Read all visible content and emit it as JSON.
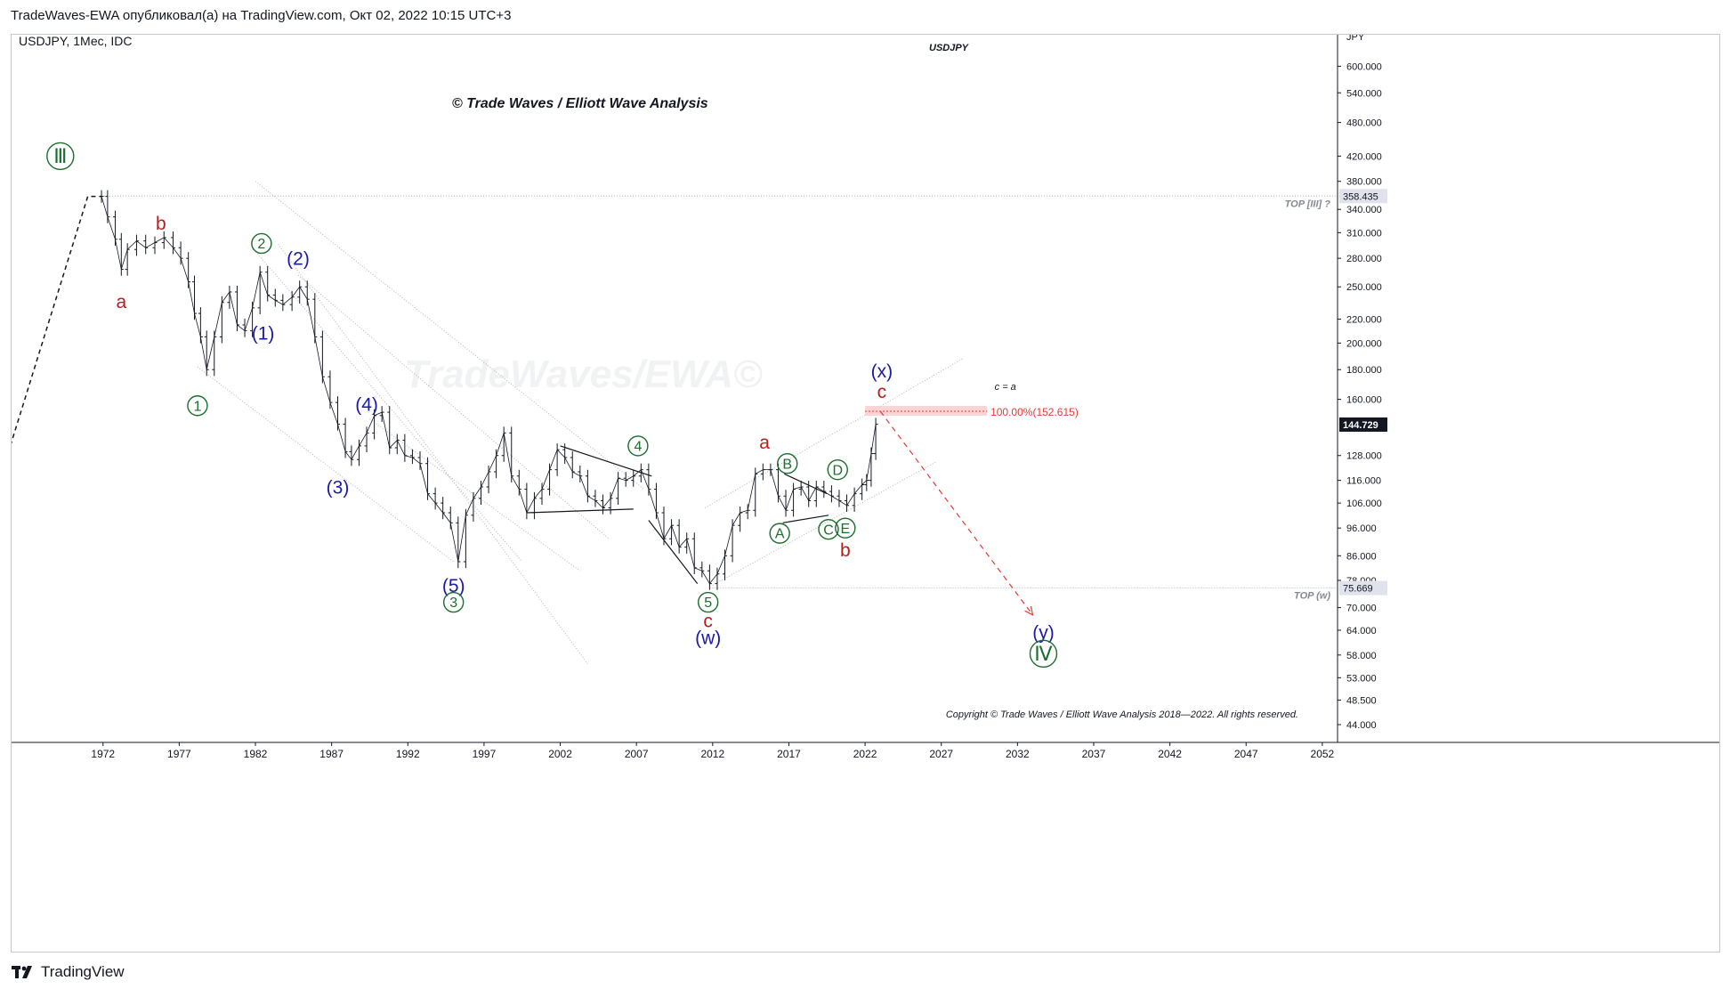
{
  "header": {
    "publisher_line": "TradeWaves-EWA опубликовал(а) на TradingView.com, Окт 02, 2022 10:15 UTC+3"
  },
  "symbol_line": "USDJPY, 1Мес, IDC",
  "symbol_tag": "USDJPY",
  "title": "© Trade Waves / Elliott Wave Analysis",
  "watermark": "TradeWaves/EWA©",
  "copyright": "Copyright © Trade Waves / Elliott Wave Analysis 2018—2022. All rights reserved.",
  "footer": {
    "brand": "TradingView"
  },
  "colors": {
    "green": "#1b6e2e",
    "blue": "#1a1aa8",
    "red": "#b71c1c",
    "bars": "#131722",
    "projection": "#e53935",
    "target_box": "#f8c7c7",
    "price_badge": "#131722",
    "level_badge": "#e0e3eb"
  },
  "chart_data": {
    "type": "ohlc",
    "title": "© Trade Waves / Elliott Wave Analysis",
    "axis_unit": "JPY",
    "y_scale": "log",
    "x_ticks": [
      "1972",
      "1977",
      "1982",
      "1987",
      "1992",
      "1997",
      "2002",
      "2007",
      "2012",
      "2017",
      "2022",
      "2027",
      "2032",
      "2037",
      "2042",
      "2047",
      "2052"
    ],
    "y_ticks": [
      "600.000",
      "540.000",
      "480.000",
      "420.000",
      "380.000",
      "340.000",
      "310.000",
      "280.000",
      "250.000",
      "220.000",
      "200.000",
      "180.000",
      "160.000",
      "128.000",
      "116.000",
      "106.000",
      "96.000",
      "86.000",
      "78.000",
      "70.000",
      "64.000",
      "58.000",
      "53.000",
      "48.500",
      "44.000"
    ],
    "ylim": [
      41,
      680
    ],
    "xlim": [
      1966,
      2053
    ],
    "price_series": [
      [
        1971.9,
        358
      ],
      [
        1972.3,
        330
      ],
      [
        1972.8,
        302
      ],
      [
        1973.2,
        268
      ],
      [
        1973.6,
        290
      ],
      [
        1974.2,
        300
      ],
      [
        1974.8,
        292
      ],
      [
        1975.4,
        298
      ],
      [
        1976.0,
        304
      ],
      [
        1976.6,
        292
      ],
      [
        1977.1,
        280
      ],
      [
        1977.6,
        255
      ],
      [
        1978.0,
        225
      ],
      [
        1978.4,
        205
      ],
      [
        1978.8,
        180
      ],
      [
        1979.3,
        205
      ],
      [
        1979.8,
        235
      ],
      [
        1980.3,
        245
      ],
      [
        1980.8,
        215
      ],
      [
        1981.3,
        210
      ],
      [
        1981.8,
        230
      ],
      [
        1982.3,
        265
      ],
      [
        1982.8,
        242
      ],
      [
        1983.3,
        237
      ],
      [
        1983.8,
        233
      ],
      [
        1984.4,
        240
      ],
      [
        1984.9,
        250
      ],
      [
        1985.4,
        238
      ],
      [
        1985.9,
        205
      ],
      [
        1986.4,
        175
      ],
      [
        1986.9,
        158
      ],
      [
        1987.4,
        145
      ],
      [
        1987.9,
        130
      ],
      [
        1988.3,
        126
      ],
      [
        1988.8,
        133
      ],
      [
        1989.3,
        140
      ],
      [
        1989.8,
        150
      ],
      [
        1990.3,
        152
      ],
      [
        1990.8,
        132
      ],
      [
        1991.3,
        136
      ],
      [
        1991.8,
        128
      ],
      [
        1992.3,
        127
      ],
      [
        1992.8,
        124
      ],
      [
        1993.3,
        110
      ],
      [
        1993.8,
        106
      ],
      [
        1994.3,
        102
      ],
      [
        1994.8,
        98
      ],
      [
        1995.3,
        84
      ],
      [
        1995.8,
        101
      ],
      [
        1996.3,
        108
      ],
      [
        1996.8,
        113
      ],
      [
        1997.3,
        120
      ],
      [
        1997.8,
        128
      ],
      [
        1998.3,
        140
      ],
      [
        1998.8,
        118
      ],
      [
        1999.3,
        112
      ],
      [
        1999.8,
        102
      ],
      [
        2000.3,
        108
      ],
      [
        2000.8,
        112
      ],
      [
        2001.3,
        121
      ],
      [
        2001.8,
        131
      ],
      [
        2002.3,
        127
      ],
      [
        2002.8,
        120
      ],
      [
        2003.3,
        118
      ],
      [
        2003.8,
        109
      ],
      [
        2004.3,
        107
      ],
      [
        2004.8,
        104
      ],
      [
        2005.3,
        108
      ],
      [
        2005.8,
        117
      ],
      [
        2006.3,
        116
      ],
      [
        2006.8,
        118
      ],
      [
        2007.3,
        121
      ],
      [
        2007.8,
        112
      ],
      [
        2008.3,
        102
      ],
      [
        2008.8,
        92
      ],
      [
        2009.3,
        97
      ],
      [
        2009.8,
        89
      ],
      [
        2010.3,
        92
      ],
      [
        2010.8,
        82
      ],
      [
        2011.3,
        81
      ],
      [
        2011.8,
        77
      ],
      [
        2012.3,
        80
      ],
      [
        2012.8,
        86
      ],
      [
        2013.3,
        97
      ],
      [
        2013.8,
        102
      ],
      [
        2014.3,
        103
      ],
      [
        2014.8,
        119
      ],
      [
        2015.3,
        121
      ],
      [
        2015.8,
        121
      ],
      [
        2016.3,
        109
      ],
      [
        2016.8,
        103
      ],
      [
        2017.3,
        112
      ],
      [
        2017.8,
        113
      ],
      [
        2018.3,
        107
      ],
      [
        2018.8,
        113
      ],
      [
        2019.3,
        111
      ],
      [
        2019.8,
        109
      ],
      [
        2020.3,
        107
      ],
      [
        2020.8,
        105
      ],
      [
        2021.3,
        110
      ],
      [
        2021.8,
        114
      ],
      [
        2022.1,
        116
      ],
      [
        2022.4,
        129
      ],
      [
        2022.7,
        145
      ]
    ],
    "reference_lines": [
      {
        "label": "TOP [III] ?",
        "value": 358.435
      },
      {
        "label": "TOP (w)",
        "value": 75.669
      }
    ],
    "price_badges": [
      {
        "value": "358.435",
        "y": 358.435,
        "style": "level"
      },
      {
        "value": "144.729",
        "y": 144.729,
        "style": "current"
      },
      {
        "value": "75.669",
        "y": 75.669,
        "style": "level"
      }
    ],
    "target_zone": {
      "label": "100.00%(152.615)",
      "value": 152.615,
      "x_start": 2022.0,
      "x_end": 2030.0,
      "note": "c = a"
    },
    "projection": {
      "from": [
        2023.0,
        152.6
      ],
      "to": [
        2033.0,
        68
      ]
    },
    "hypothetical_path": [
      [
        1960.0,
        42
      ],
      [
        1971.0,
        358
      ],
      [
        1971.9,
        358
      ]
    ],
    "wave_labels": [
      {
        "text": "Ⅲ",
        "x": 1969.2,
        "y": 420,
        "color": "green",
        "circled": true
      },
      {
        "text": "b",
        "x": 1975.8,
        "y": 322,
        "color": "red"
      },
      {
        "text": "a",
        "x": 1973.2,
        "y": 236,
        "color": "red"
      },
      {
        "text": "2",
        "x": 1982.4,
        "y": 297,
        "color": "green",
        "circled": true
      },
      {
        "text": "(2)",
        "x": 1984.8,
        "y": 280,
        "color": "blue"
      },
      {
        "text": "(1)",
        "x": 1982.5,
        "y": 208,
        "color": "blue"
      },
      {
        "text": "1",
        "x": 1978.2,
        "y": 156,
        "color": "green",
        "circled": true
      },
      {
        "text": "(4)",
        "x": 1989.3,
        "y": 157,
        "color": "blue"
      },
      {
        "text": "(3)",
        "x": 1987.4,
        "y": 113,
        "color": "blue"
      },
      {
        "text": "(5)",
        "x": 1995.0,
        "y": 76.5,
        "color": "blue"
      },
      {
        "text": "3",
        "x": 1995.0,
        "y": 71.5,
        "color": "green",
        "circled": true
      },
      {
        "text": "4",
        "x": 2007.1,
        "y": 133,
        "color": "green",
        "circled": true
      },
      {
        "text": "5",
        "x": 2011.7,
        "y": 71.5,
        "color": "green",
        "circled": true
      },
      {
        "text": "c",
        "x": 2011.7,
        "y": 66.5,
        "color": "red"
      },
      {
        "text": "(w)",
        "x": 2011.7,
        "y": 62.2,
        "color": "blue"
      },
      {
        "text": "a",
        "x": 2015.4,
        "y": 135,
        "color": "red"
      },
      {
        "text": "B",
        "x": 2016.9,
        "y": 124,
        "color": "green",
        "circled": true
      },
      {
        "text": "D",
        "x": 2020.2,
        "y": 121,
        "color": "green",
        "circled": true
      },
      {
        "text": "A",
        "x": 2016.4,
        "y": 94,
        "color": "green",
        "circled": true
      },
      {
        "text": "C",
        "x": 2019.6,
        "y": 95.5,
        "color": "green",
        "circled": true
      },
      {
        "text": "E",
        "x": 2020.7,
        "y": 96,
        "color": "green",
        "circled": true
      },
      {
        "text": "b",
        "x": 2020.7,
        "y": 88,
        "color": "red"
      },
      {
        "text": "(x)",
        "x": 2023.1,
        "y": 179,
        "color": "blue"
      },
      {
        "text": "c",
        "x": 2023.1,
        "y": 165,
        "color": "red"
      },
      {
        "text": "(y)",
        "x": 2033.7,
        "y": 63.5,
        "color": "blue"
      },
      {
        "text": "Ⅳ",
        "x": 2033.7,
        "y": 58.3,
        "color": "green",
        "circled": true
      }
    ],
    "trend_lines": [
      {
        "from": [
          1982.0,
          380
        ],
        "to": [
          2007.5,
          112
        ],
        "style": "dotted"
      },
      {
        "from": [
          1981.8,
          292
        ],
        "to": [
          1999.5,
          84
        ],
        "style": "dotted"
      },
      {
        "from": [
          1984.8,
          262
        ],
        "to": [
          2005.2,
          92
        ],
        "style": "dotted"
      },
      {
        "from": [
          1978.2,
          182
        ],
        "to": [
          1995.0,
          84
        ],
        "style": "dotted"
      },
      {
        "from": [
          1989.5,
          148
        ],
        "to": [
          2003.3,
          81
        ],
        "style": "dotted"
      },
      {
        "from": [
          1983.5,
          296
        ],
        "to": [
          2003.8,
          56
        ],
        "style": "dotted"
      },
      {
        "from": [
          2002.0,
          133
        ],
        "to": [
          2008.0,
          118
        ],
        "style": "solid"
      },
      {
        "from": [
          1999.8,
          102
        ],
        "to": [
          2006.8,
          103.5
        ],
        "style": "solid"
      },
      {
        "from": [
          2007.8,
          99
        ],
        "to": [
          2011.0,
          77
        ],
        "style": "solid"
      },
      {
        "from": [
          2016.7,
          119
        ],
        "to": [
          2019.5,
          110
        ],
        "style": "solid"
      },
      {
        "from": [
          2016.6,
          98
        ],
        "to": [
          2019.6,
          101
        ],
        "style": "solid"
      },
      {
        "from": [
          2011.5,
          104
        ],
        "to": [
          2028.4,
          188
        ],
        "style": "dotted"
      },
      {
        "from": [
          2012.0,
          76.5
        ],
        "to": [
          2026.7,
          125
        ],
        "style": "dotted"
      }
    ]
  }
}
